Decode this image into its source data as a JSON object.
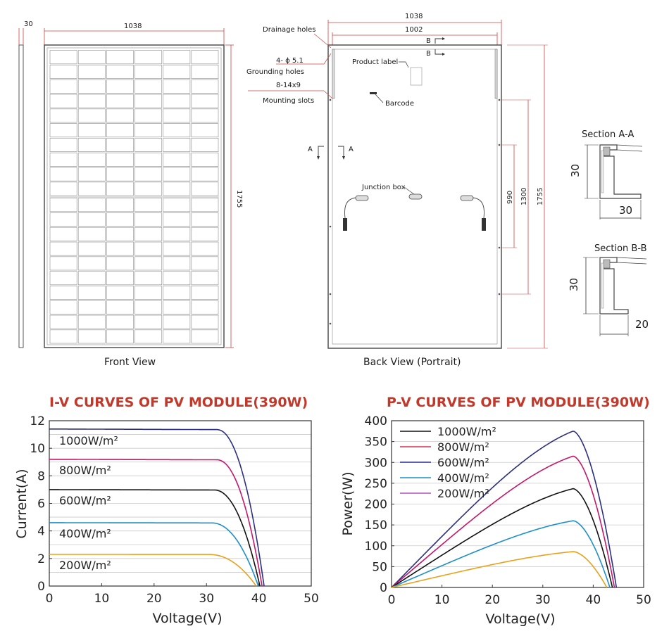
{
  "drawing": {
    "front": {
      "caption": "Front View",
      "thickness": "30",
      "width": "1038",
      "height": "1755"
    },
    "back": {
      "caption": "Back View (Portrait)",
      "outer_width": "1038",
      "inner_width": "1002",
      "height": "1755",
      "hole_spacing_1300": "1300",
      "hole_spacing_990": "990",
      "callouts": {
        "drainage": "Drainage holes",
        "grounding_spec": "4- ϕ 5.1",
        "grounding": "Grounding holes",
        "mounting_spec": "8-14x9",
        "mounting": "Mounting slots",
        "product_label": "Product label",
        "barcode": "Barcode",
        "junction_box": "Junction box"
      },
      "section_marks": {
        "a": "A",
        "b": "B"
      }
    },
    "section_aa": {
      "title": "Section A-A",
      "height": "30",
      "width": "30"
    },
    "section_bb": {
      "title": "Section B-B",
      "height": "30",
      "width": "20"
    }
  },
  "chart_data": [
    {
      "type": "line",
      "title": "I-V CURVES OF PV MODULE(390W)",
      "xlabel": "Voltage(V)",
      "ylabel": "Current(A)",
      "xlim": [
        0,
        50
      ],
      "ylim": [
        0,
        12
      ],
      "xticks": [
        "0",
        "10",
        "20",
        "30",
        "40",
        "50"
      ],
      "yticks": [
        "0",
        "2",
        "4",
        "6",
        "8",
        "10",
        "12"
      ],
      "grid": "horizontal",
      "series": [
        {
          "name": "1000W/m²",
          "color": "#2b2f7e",
          "isc": 11.4,
          "knee_v": 32,
          "voc": 41.0
        },
        {
          "name": "800W/m²",
          "color": "#c2186b",
          "isc": 9.2,
          "knee_v": 32,
          "voc": 40.6
        },
        {
          "name": "600W/m²",
          "color": "#111111",
          "isc": 7.0,
          "knee_v": 31.5,
          "voc": 40.2
        },
        {
          "name": "400W/m²",
          "color": "#1e8fc8",
          "isc": 4.6,
          "knee_v": 31,
          "voc": 39.9
        },
        {
          "name": "200W/m²",
          "color": "#e6a21c",
          "isc": 2.3,
          "knee_v": 30.5,
          "voc": 39.5
        }
      ]
    },
    {
      "type": "line",
      "title": "P-V CURVES OF PV MODULE(390W)",
      "xlabel": "Voltage(V)",
      "ylabel": "Power(W)",
      "xlim": [
        0,
        50
      ],
      "ylim": [
        0,
        400
      ],
      "xticks": [
        "0",
        "10",
        "20",
        "30",
        "40",
        "50"
      ],
      "yticks": [
        "0",
        "50",
        "100",
        "150",
        "200",
        "250",
        "300",
        "350",
        "400"
      ],
      "grid": "horizontal",
      "legend": [
        "1000W/m²",
        "800W/m²",
        "600W/m²",
        "400W/m²",
        "200W/m²"
      ],
      "legend_colors": [
        "#111111",
        "#d9304f",
        "#2b2fa0",
        "#1e8fc8",
        "#b04fc0"
      ],
      "series": [
        {
          "color": "#2b2f7e",
          "pmax": 375,
          "vmp": 36,
          "voc": 44.6
        },
        {
          "color": "#c2186b",
          "pmax": 315,
          "vmp": 36,
          "voc": 44.2
        },
        {
          "color": "#111111",
          "pmax": 237,
          "vmp": 36,
          "voc": 43.8
        },
        {
          "color": "#1e8fc8",
          "pmax": 160,
          "vmp": 36,
          "voc": 43.3
        },
        {
          "color": "#e6a21c",
          "pmax": 86,
          "vmp": 36,
          "voc": 42.7
        }
      ]
    }
  ]
}
